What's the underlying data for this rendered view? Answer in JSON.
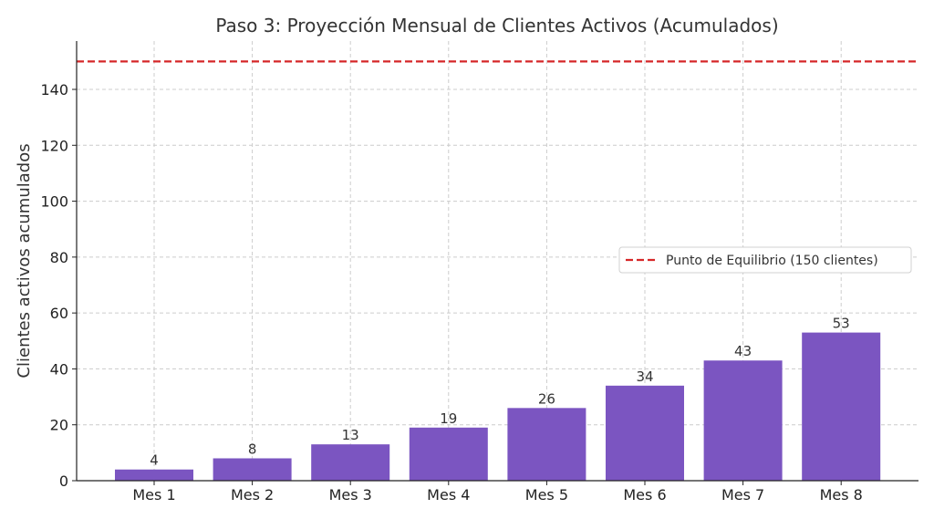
{
  "chart_data": {
    "type": "bar",
    "title": "Paso 3: Proyección Mensual de Clientes Activos (Acumulados)",
    "xlabel": "",
    "ylabel": "Clientes activos acumulados",
    "categories": [
      "Mes 1",
      "Mes 2",
      "Mes 3",
      "Mes 4",
      "Mes 5",
      "Mes 6",
      "Mes 7",
      "Mes 8"
    ],
    "values": [
      4,
      8,
      13,
      19,
      26,
      34,
      43,
      53
    ],
    "data_labels": [
      "4",
      "8",
      "13",
      "19",
      "26",
      "34",
      "43",
      "53"
    ],
    "ylim": [
      0,
      150
    ],
    "yticks": [
      0,
      20,
      40,
      60,
      80,
      100,
      120,
      140
    ],
    "grid": true,
    "bar_color": "#7b55c1",
    "reference_line": {
      "value": 150,
      "label": "Punto de Equilibrio (150 clientes)",
      "color": "#d62728",
      "style": "dashed"
    },
    "legend_position": "center-right"
  }
}
